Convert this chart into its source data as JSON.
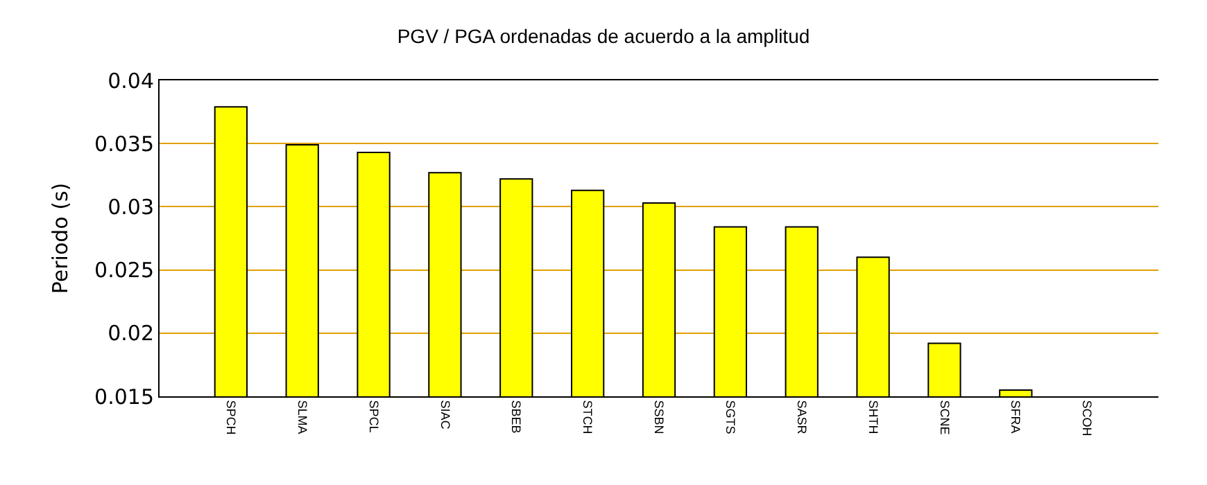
{
  "chart_data": {
    "type": "bar",
    "title": "PGV / PGA ordenadas de acuerdo a la amplitud",
    "ylabel": "Periodo (s)",
    "categories": [
      "SPCH",
      "SLMA",
      "SPCL",
      "SIAC",
      "SBEB",
      "STCH",
      "SSBN",
      "SGTS",
      "SASR",
      "SHTH",
      "SCNE",
      "SFRA",
      "SCOH"
    ],
    "values": [
      0.0379,
      0.0349,
      0.0343,
      0.0327,
      0.0322,
      0.0313,
      0.0303,
      0.0284,
      0.0284,
      0.026,
      0.0192,
      0.0155,
      null
    ],
    "color": "#ffff00",
    "ylim": [
      0.015,
      0.04
    ],
    "yticks": [
      0.015,
      0.02,
      0.025,
      0.03,
      0.035,
      0.04
    ],
    "grid": "y"
  }
}
